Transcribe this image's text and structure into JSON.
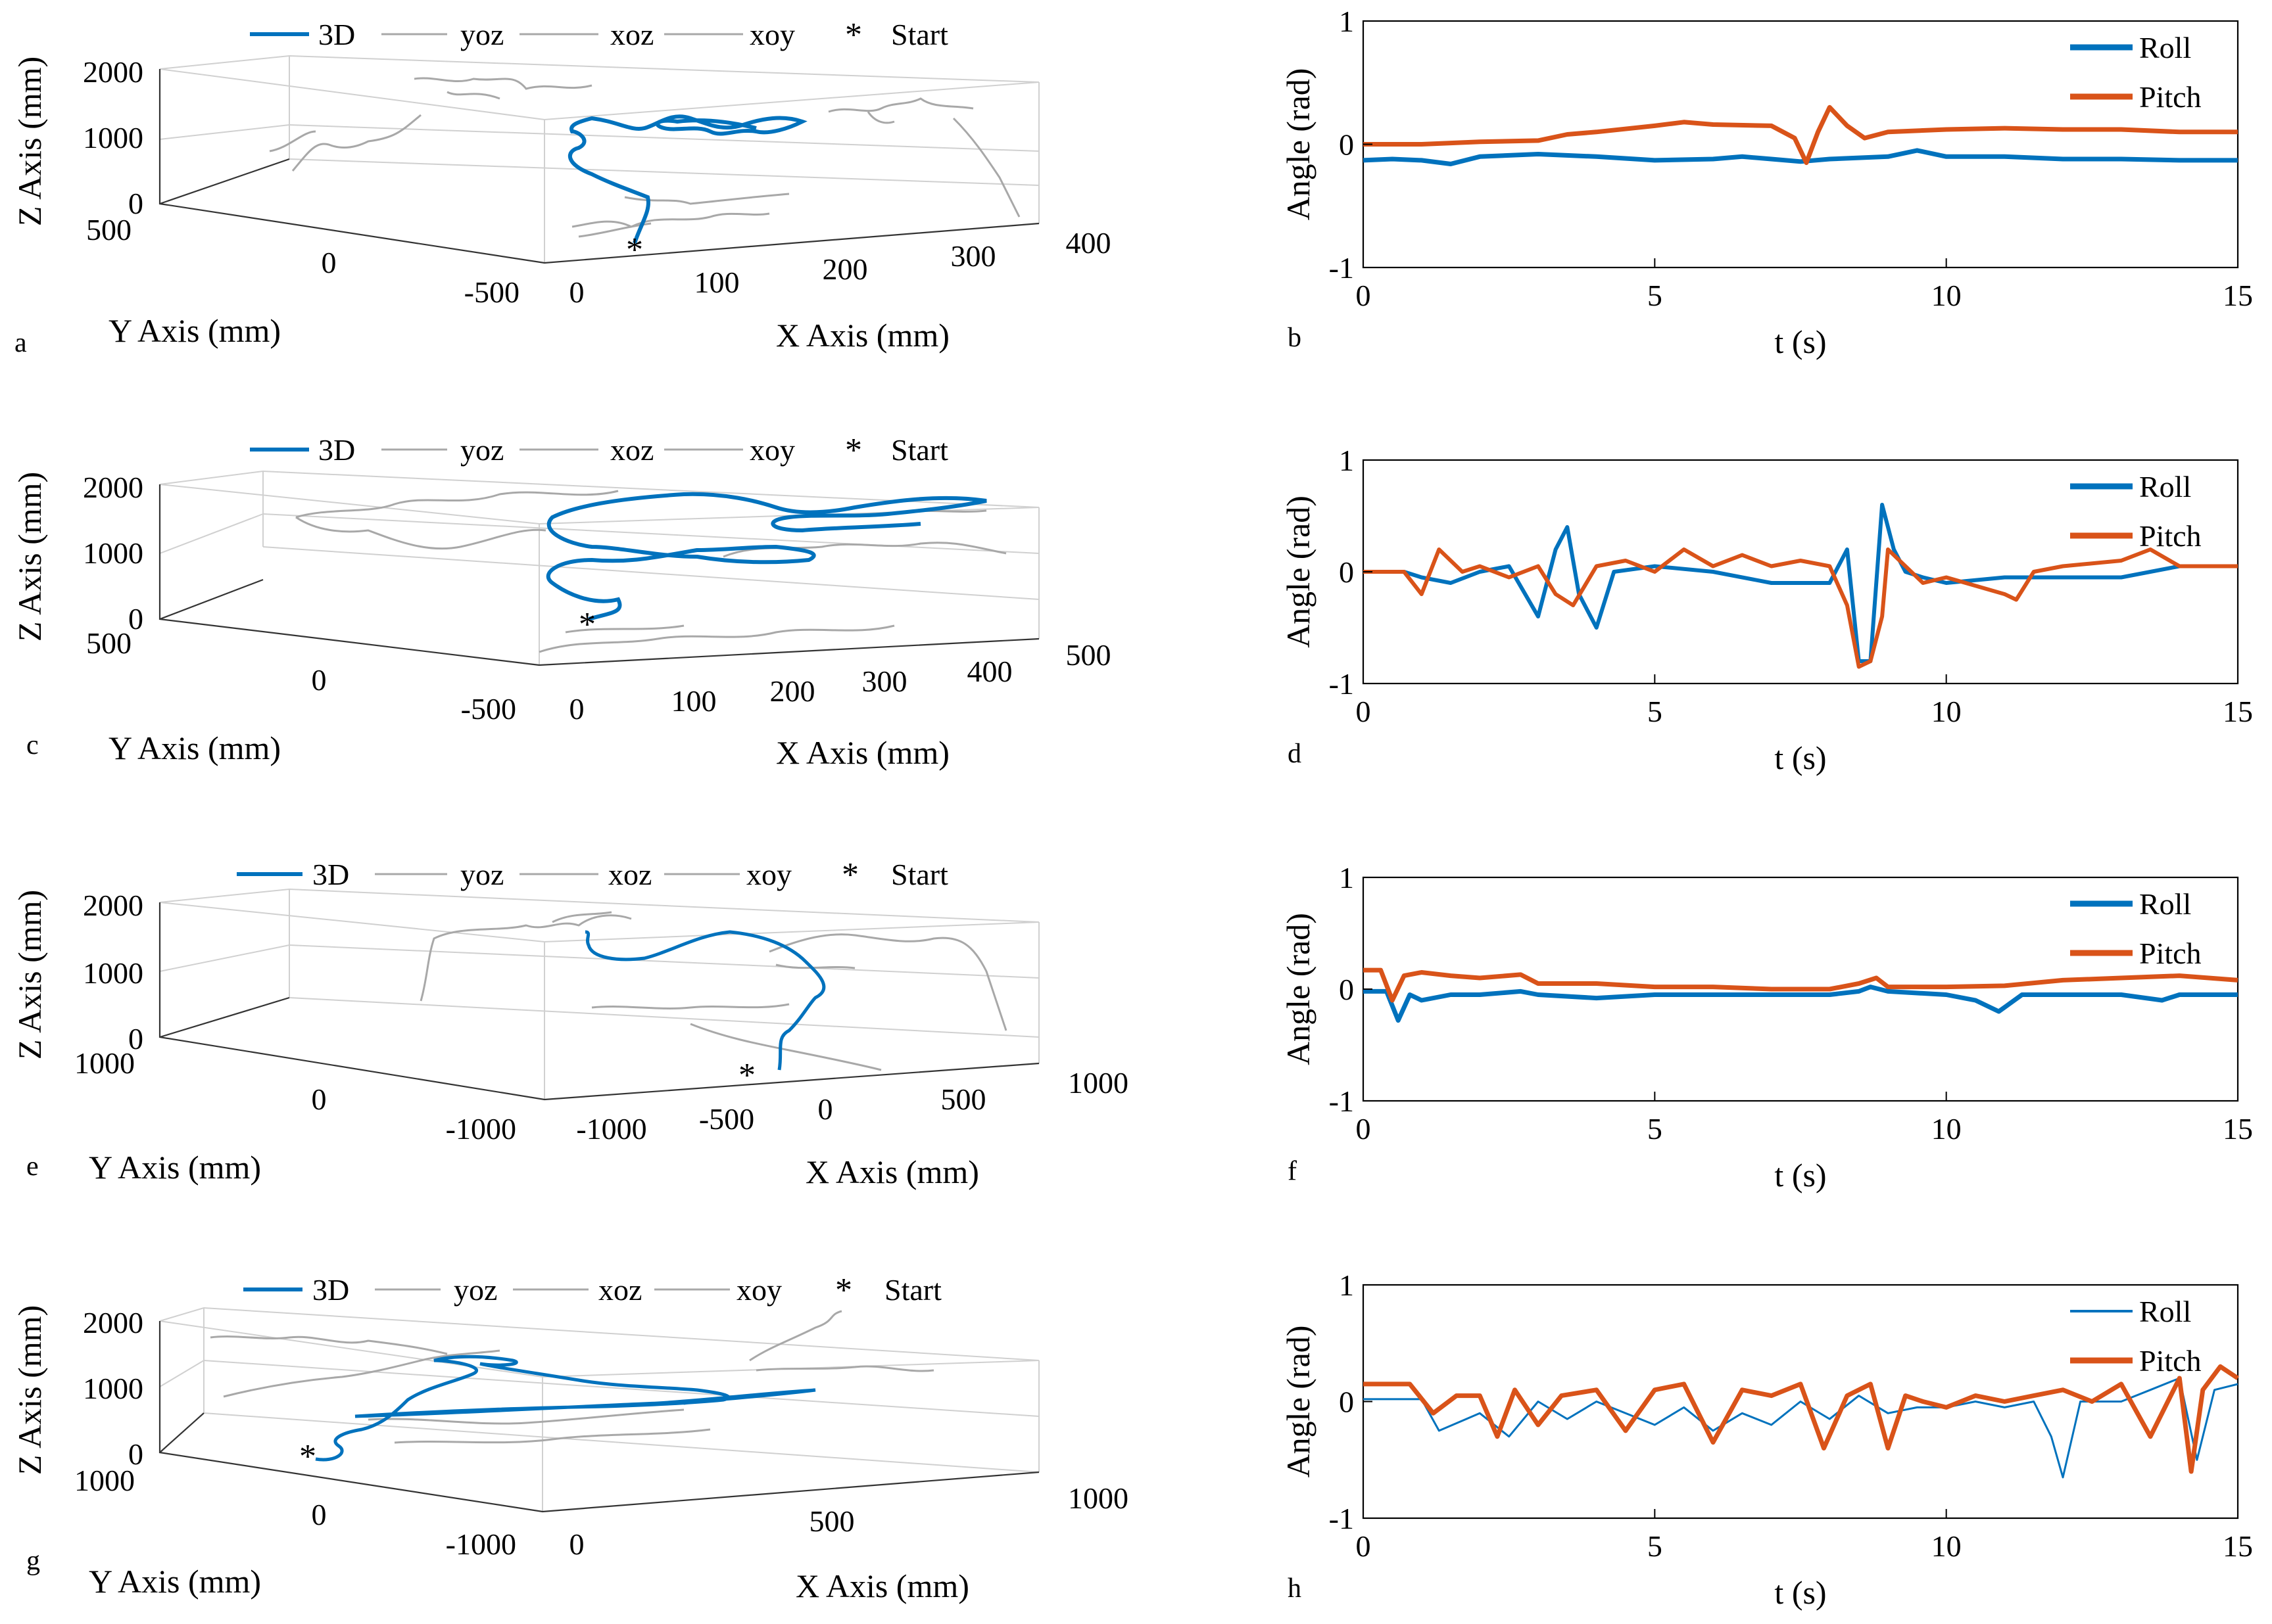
{
  "colors": {
    "roll": "#0072BD",
    "pitch": "#D95319",
    "projection": "#a8a8a8",
    "start": "#D95319"
  },
  "legend3d": [
    "3D",
    "yoz",
    "xoz",
    "xoy",
    "Start"
  ],
  "chart_data": [
    {
      "panel": "a",
      "type": "line3d",
      "xlabel": "X Axis (mm)",
      "ylabel": "Y Axis (mm)",
      "zlabel": "Z Axis (mm)",
      "x_ticks": [
        "0",
        "100",
        "200",
        "300",
        "400"
      ],
      "y_ticks": [
        "500",
        "0",
        "-500"
      ],
      "z_ticks": [
        "0",
        "1000",
        "2000"
      ],
      "legend": [
        "3D",
        "yoz",
        "xoz",
        "xoy",
        "Start"
      ]
    },
    {
      "panel": "b",
      "type": "line",
      "xlabel": "t (s)",
      "ylabel": "Angle (rad)",
      "xlim": [
        0,
        15
      ],
      "ylim": [
        -1,
        1
      ],
      "x_ticks": [
        "0",
        "5",
        "10",
        "15"
      ],
      "y_ticks": [
        "1",
        "0",
        "-1"
      ],
      "legend": [
        "Roll",
        "Pitch"
      ],
      "linewidth": 7,
      "series": [
        {
          "name": "Roll",
          "t": [
            0,
            0.5,
            1,
            1.5,
            2,
            3,
            4,
            5,
            6,
            6.5,
            7,
            7.5,
            8,
            9,
            9.5,
            10,
            11,
            12,
            13,
            14,
            15
          ],
          "values": [
            -0.13,
            -0.12,
            -0.13,
            -0.16,
            -0.1,
            -0.08,
            -0.1,
            -0.13,
            -0.12,
            -0.1,
            -0.12,
            -0.14,
            -0.12,
            -0.1,
            -0.05,
            -0.1,
            -0.1,
            -0.12,
            -0.12,
            -0.13,
            -0.13
          ]
        },
        {
          "name": "Pitch",
          "t": [
            0,
            1,
            2,
            3,
            3.5,
            4,
            5,
            5.5,
            6,
            7,
            7.4,
            7.6,
            7.8,
            8,
            8.3,
            8.6,
            9,
            10,
            11,
            12,
            13,
            14,
            15
          ],
          "values": [
            0,
            0,
            0.02,
            0.03,
            0.08,
            0.1,
            0.15,
            0.18,
            0.16,
            0.15,
            0.05,
            -0.15,
            0.1,
            0.3,
            0.15,
            0.05,
            0.1,
            0.12,
            0.13,
            0.12,
            0.12,
            0.1,
            0.1
          ]
        }
      ]
    },
    {
      "panel": "c",
      "type": "line3d",
      "xlabel": "X Axis (mm)",
      "ylabel": "Y Axis (mm)",
      "zlabel": "Z Axis (mm)",
      "x_ticks": [
        "0",
        "100",
        "200",
        "300",
        "400",
        "500"
      ],
      "y_ticks": [
        "500",
        "0",
        "-500"
      ],
      "z_ticks": [
        "0",
        "1000",
        "2000"
      ],
      "legend": [
        "3D",
        "yoz",
        "xoz",
        "xoy",
        "Start"
      ]
    },
    {
      "panel": "d",
      "type": "line",
      "xlabel": "t (s)",
      "ylabel": "Angle (rad)",
      "xlim": [
        0,
        15
      ],
      "ylim": [
        -1,
        1
      ],
      "x_ticks": [
        "0",
        "5",
        "10",
        "15"
      ],
      "y_ticks": [
        "1",
        "0",
        "-1"
      ],
      "legend": [
        "Roll",
        "Pitch"
      ],
      "linewidth": 6,
      "series": [
        {
          "name": "Roll",
          "t": [
            0,
            0.7,
            1,
            1.5,
            2,
            2.5,
            3,
            3.3,
            3.5,
            3.7,
            4,
            4.3,
            5,
            6,
            7,
            7.5,
            8,
            8.3,
            8.5,
            8.7,
            8.9,
            9.1,
            9.3,
            9.6,
            10,
            11,
            12,
            13,
            14,
            15
          ],
          "values": [
            0,
            0,
            -0.05,
            -0.1,
            0,
            0.05,
            -0.4,
            0.2,
            0.4,
            -0.2,
            -0.5,
            0,
            0.05,
            0,
            -0.1,
            -0.1,
            -0.1,
            0.2,
            -0.8,
            -0.8,
            0.6,
            0.2,
            0,
            -0.05,
            -0.1,
            -0.05,
            -0.05,
            -0.05,
            0.05,
            0.05
          ]
        },
        {
          "name": "Pitch",
          "t": [
            0,
            0.7,
            1,
            1.3,
            1.7,
            2,
            2.5,
            3,
            3.3,
            3.6,
            4,
            4.5,
            5,
            5.5,
            6,
            6.5,
            7,
            7.5,
            8,
            8.3,
            8.5,
            8.7,
            8.9,
            9,
            9.3,
            9.6,
            10,
            11,
            11.2,
            11.5,
            12,
            13,
            13.5,
            14,
            15
          ],
          "values": [
            0,
            0,
            -0.2,
            0.2,
            0,
            0.05,
            -0.05,
            0.05,
            -0.2,
            -0.3,
            0.05,
            0.1,
            0,
            0.2,
            0.05,
            0.15,
            0.05,
            0.1,
            0.05,
            -0.3,
            -0.85,
            -0.8,
            -0.4,
            0.2,
            0.05,
            -0.1,
            -0.05,
            -0.2,
            -0.25,
            0,
            0.05,
            0.1,
            0.2,
            0.05,
            0.05
          ]
        }
      ]
    },
    {
      "panel": "e",
      "type": "line3d",
      "xlabel": "X Axis (mm)",
      "ylabel": "Y Axis (mm)",
      "zlabel": "Z Axis (mm)",
      "x_ticks": [
        "-1000",
        "-500",
        "0",
        "500",
        "1000"
      ],
      "y_ticks": [
        "1000",
        "0",
        "-1000"
      ],
      "z_ticks": [
        "0",
        "1000",
        "2000"
      ],
      "legend": [
        "3D",
        "yoz",
        "xoz",
        "xoy",
        "Start"
      ]
    },
    {
      "panel": "f",
      "type": "line",
      "xlabel": "t (s)",
      "ylabel": "Angle (rad)",
      "xlim": [
        0,
        15
      ],
      "ylim": [
        -1,
        1
      ],
      "x_ticks": [
        "0",
        "5",
        "10",
        "15"
      ],
      "y_ticks": [
        "1",
        "0",
        "-1"
      ],
      "legend": [
        "Roll",
        "Pitch"
      ],
      "linewidth": 7,
      "series": [
        {
          "name": "Roll",
          "t": [
            0,
            0.4,
            0.6,
            0.8,
            1,
            1.5,
            2,
            2.7,
            3,
            4,
            5,
            6,
            7,
            8,
            8.5,
            8.7,
            9,
            10,
            10.5,
            10.9,
            11.3,
            12,
            13,
            13.7,
            14,
            15
          ],
          "values": [
            -0.02,
            -0.02,
            -0.28,
            -0.05,
            -0.1,
            -0.05,
            -0.05,
            -0.02,
            -0.05,
            -0.08,
            -0.05,
            -0.05,
            -0.05,
            -0.05,
            -0.02,
            0.02,
            -0.02,
            -0.05,
            -0.1,
            -0.2,
            -0.05,
            -0.05,
            -0.05,
            -0.1,
            -0.05,
            -0.05
          ]
        },
        {
          "name": "Pitch",
          "t": [
            0,
            0.3,
            0.5,
            0.7,
            1,
            1.5,
            2,
            2.7,
            3,
            4,
            5,
            6,
            7,
            8,
            8.5,
            8.8,
            9,
            10,
            11,
            12,
            13,
            14,
            15
          ],
          "values": [
            0.17,
            0.17,
            -0.1,
            0.12,
            0.15,
            0.12,
            0.1,
            0.13,
            0.05,
            0.05,
            0.02,
            0.02,
            0,
            0,
            0.05,
            0.1,
            0.02,
            0.02,
            0.03,
            0.08,
            0.1,
            0.12,
            0.08
          ]
        }
      ]
    },
    {
      "panel": "g",
      "type": "line3d",
      "xlabel": "X Axis (mm)",
      "ylabel": "Y Axis (mm)",
      "zlabel": "Z Axis (mm)",
      "x_ticks": [
        "0",
        "500",
        "1000"
      ],
      "y_ticks": [
        "1000",
        "0",
        "-1000"
      ],
      "z_ticks": [
        "0",
        "1000",
        "2000"
      ],
      "legend": [
        "3D",
        "yoz",
        "xoz",
        "xoy",
        "Start"
      ]
    },
    {
      "panel": "h",
      "type": "line",
      "xlabel": "t (s)",
      "ylabel": "Angle (rad)",
      "xlim": [
        0,
        15
      ],
      "ylim": [
        -1,
        1
      ],
      "x_ticks": [
        "0",
        "5",
        "10",
        "15"
      ],
      "y_ticks": [
        "1",
        "0",
        "-1"
      ],
      "legend": [
        "Roll",
        "Pitch"
      ],
      "linewidth": 7,
      "series": [
        {
          "name": "Roll",
          "t": [
            0,
            1,
            1.3,
            2,
            2.5,
            3,
            3.5,
            4,
            5,
            5.5,
            6,
            6.5,
            7,
            7.5,
            8,
            8.5,
            9,
            9.5,
            10,
            10.5,
            11,
            11.5,
            11.8,
            12,
            12.3,
            13,
            13.5,
            14,
            14.3,
            14.6,
            15
          ],
          "values": [
            0.02,
            0.02,
            -0.25,
            -0.1,
            -0.3,
            0,
            -0.15,
            0,
            -0.2,
            -0.05,
            -0.25,
            -0.1,
            -0.2,
            0,
            -0.15,
            0.05,
            -0.1,
            -0.05,
            -0.05,
            0,
            -0.05,
            0,
            -0.3,
            -0.65,
            0,
            0,
            0.1,
            0.2,
            -0.5,
            0.1,
            0.15
          ]
        },
        {
          "name": "Pitch",
          "t": [
            0,
            0.8,
            1.2,
            1.6,
            2,
            2.3,
            2.6,
            3,
            3.4,
            4,
            4.5,
            5,
            5.5,
            6,
            6.5,
            7,
            7.5,
            7.9,
            8.3,
            8.7,
            9,
            9.3,
            9.6,
            10,
            10.5,
            11,
            11.5,
            12,
            12.5,
            13,
            13.5,
            14,
            14.2,
            14.4,
            14.7,
            15
          ],
          "values": [
            0.15,
            0.15,
            -0.1,
            0.05,
            0.05,
            -0.3,
            0.1,
            -0.2,
            0.05,
            0.1,
            -0.25,
            0.1,
            0.15,
            -0.35,
            0.1,
            0.05,
            0.15,
            -0.4,
            0.05,
            0.15,
            -0.4,
            0.05,
            0,
            -0.05,
            0.05,
            0,
            0.05,
            0.1,
            0,
            0.15,
            -0.3,
            0.2,
            -0.6,
            0.1,
            0.3,
            0.2
          ]
        }
      ]
    }
  ]
}
